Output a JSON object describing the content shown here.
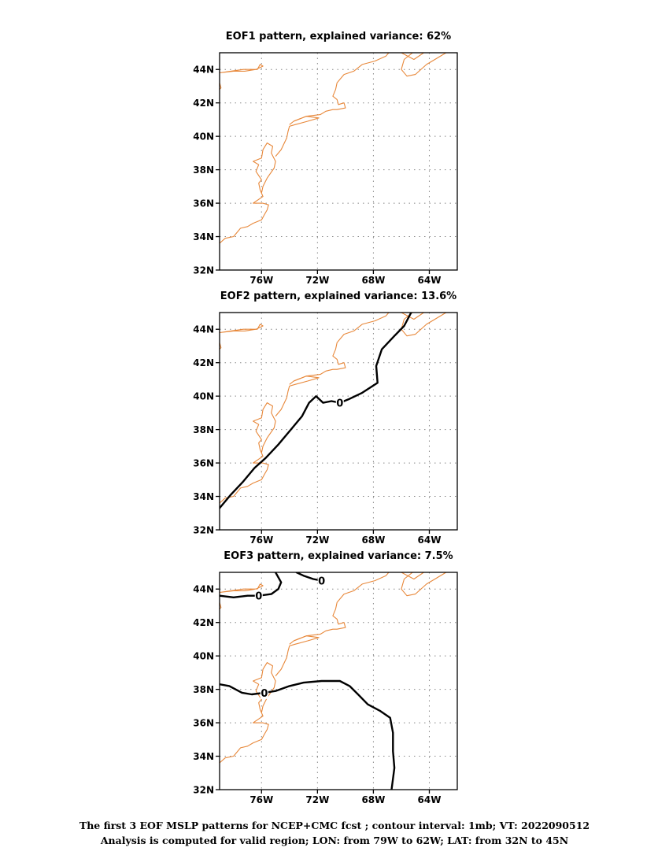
{
  "map": {
    "lon_range": [
      -79,
      -62
    ],
    "lat_range": [
      32,
      45
    ],
    "lon_ticks": [
      -76,
      -72,
      -68,
      -64
    ],
    "lat_ticks": [
      32,
      34,
      36,
      38,
      40,
      42,
      44
    ],
    "lon_tick_labels": [
      "76W",
      "72W",
      "68W",
      "64W"
    ],
    "lat_tick_labels": [
      "32N",
      "34N",
      "36N",
      "38N",
      "40N",
      "42N",
      "44N"
    ],
    "coast_color": "#e8883a",
    "contour_color": "#000000"
  },
  "panels": [
    {
      "title": "EOF1 pattern, explained variance: 62%",
      "contours": []
    },
    {
      "title": "EOF2 pattern, explained variance: 13.6%",
      "contours": [
        {
          "value": "0",
          "label_at": [
            -70.4,
            39.6
          ],
          "points": [
            [
              -79.0,
              33.3
            ],
            [
              -78.2,
              34.1
            ],
            [
              -77.3,
              34.9
            ],
            [
              -76.5,
              35.7
            ],
            [
              -75.7,
              36.3
            ],
            [
              -74.8,
              37.1
            ],
            [
              -73.9,
              38.0
            ],
            [
              -73.1,
              38.8
            ],
            [
              -72.6,
              39.6
            ],
            [
              -72.1,
              40.0
            ],
            [
              -71.6,
              39.6
            ],
            [
              -71.0,
              39.7
            ],
            [
              -70.4,
              39.6
            ],
            [
              -69.8,
              39.8
            ],
            [
              -68.8,
              40.2
            ],
            [
              -67.7,
              40.8
            ],
            [
              -67.8,
              41.8
            ],
            [
              -67.4,
              42.8
            ],
            [
              -66.5,
              43.6
            ],
            [
              -65.8,
              44.2
            ],
            [
              -65.3,
              45.0
            ]
          ]
        }
      ]
    },
    {
      "title": "EOF3 pattern, explained variance: 7.5%",
      "contours": [
        {
          "value": "0",
          "label_at": [
            -76.2,
            43.6
          ],
          "points": [
            [
              -79.0,
              43.6
            ],
            [
              -78.0,
              43.5
            ],
            [
              -77.0,
              43.6
            ],
            [
              -76.2,
              43.6
            ],
            [
              -75.3,
              43.7
            ],
            [
              -74.8,
              44.0
            ],
            [
              -74.6,
              44.4
            ],
            [
              -75.0,
              45.0
            ]
          ]
        },
        {
          "value": "0",
          "label_at": [
            -71.7,
            44.5
          ],
          "points": [
            [
              -73.5,
              45.0
            ],
            [
              -73.0,
              44.8
            ],
            [
              -72.3,
              44.6
            ],
            [
              -71.7,
              44.5
            ]
          ]
        },
        {
          "value": "0",
          "label_at": [
            -75.8,
            37.8
          ],
          "points": [
            [
              -79.0,
              38.3
            ],
            [
              -78.3,
              38.2
            ],
            [
              -77.4,
              37.8
            ],
            [
              -76.7,
              37.7
            ],
            [
              -75.8,
              37.8
            ],
            [
              -75.0,
              37.9
            ],
            [
              -74.0,
              38.2
            ],
            [
              -73.0,
              38.4
            ],
            [
              -71.7,
              38.5
            ],
            [
              -70.4,
              38.5
            ],
            [
              -69.7,
              38.2
            ],
            [
              -69.1,
              37.7
            ],
            [
              -68.4,
              37.1
            ],
            [
              -67.5,
              36.7
            ],
            [
              -66.8,
              36.3
            ],
            [
              -66.6,
              35.4
            ],
            [
              -66.6,
              34.3
            ],
            [
              -66.5,
              33.3
            ],
            [
              -66.7,
              32.0
            ]
          ]
        }
      ]
    }
  ],
  "coastlines": [
    [
      [
        -79.0,
        33.6
      ],
      [
        -78.6,
        33.9
      ],
      [
        -78.0,
        34.0
      ],
      [
        -77.5,
        34.5
      ],
      [
        -77.0,
        34.6
      ],
      [
        -76.6,
        34.8
      ],
      [
        -76.0,
        35.0
      ],
      [
        -75.8,
        35.3
      ],
      [
        -75.6,
        35.6
      ],
      [
        -75.5,
        35.9
      ],
      [
        -75.9,
        36.0
      ],
      [
        -76.6,
        36.0
      ],
      [
        -75.9,
        36.4
      ],
      [
        -76.1,
        36.8
      ],
      [
        -76.2,
        37.2
      ],
      [
        -76.0,
        37.4
      ],
      [
        -76.4,
        37.9
      ],
      [
        -76.2,
        38.3
      ],
      [
        -76.6,
        38.5
      ],
      [
        -76.0,
        38.7
      ],
      [
        -75.9,
        39.2
      ],
      [
        -75.6,
        39.6
      ],
      [
        -75.2,
        39.4
      ],
      [
        -75.3,
        39.0
      ],
      [
        -75.0,
        38.5
      ],
      [
        -75.1,
        38.1
      ],
      [
        -75.6,
        37.5
      ],
      [
        -75.9,
        37.0
      ],
      [
        -76.0,
        36.6
      ]
    ],
    [
      [
        -75.0,
        38.8
      ],
      [
        -74.6,
        39.2
      ],
      [
        -74.2,
        39.9
      ],
      [
        -74.1,
        40.3
      ],
      [
        -74.0,
        40.6
      ],
      [
        -73.6,
        40.7
      ],
      [
        -72.7,
        40.9
      ],
      [
        -71.9,
        41.1
      ],
      [
        -72.8,
        41.2
      ],
      [
        -73.7,
        40.9
      ],
      [
        -74.0,
        40.7
      ]
    ],
    [
      [
        -73.7,
        40.9
      ],
      [
        -72.8,
        41.2
      ],
      [
        -71.8,
        41.3
      ],
      [
        -71.4,
        41.5
      ],
      [
        -70.9,
        41.6
      ],
      [
        -70.6,
        41.6
      ],
      [
        -70.0,
        41.7
      ],
      [
        -70.1,
        42.0
      ],
      [
        -70.5,
        41.9
      ],
      [
        -70.6,
        42.2
      ],
      [
        -70.9,
        42.4
      ],
      [
        -70.7,
        42.8
      ],
      [
        -70.6,
        43.2
      ],
      [
        -70.1,
        43.7
      ],
      [
        -69.4,
        43.9
      ],
      [
        -68.8,
        44.3
      ],
      [
        -67.9,
        44.5
      ],
      [
        -67.1,
        44.8
      ],
      [
        -66.9,
        45.0
      ]
    ],
    [
      [
        -79.0,
        43.8
      ],
      [
        -78.2,
        43.9
      ],
      [
        -77.3,
        44.0
      ],
      [
        -76.3,
        44.0
      ],
      [
        -76.1,
        44.3
      ],
      [
        -75.9,
        44.2
      ],
      [
        -76.4,
        44.0
      ],
      [
        -77.2,
        43.9
      ],
      [
        -78.0,
        43.9
      ],
      [
        -79.0,
        43.8
      ]
    ],
    [
      [
        -79.0,
        42.8
      ],
      [
        -78.9,
        42.9
      ],
      [
        -79.0,
        43.2
      ]
    ],
    [
      [
        -66.0,
        45.0
      ],
      [
        -65.1,
        44.6
      ],
      [
        -64.4,
        45.0
      ]
    ],
    [
      [
        -65.2,
        45.0
      ],
      [
        -65.8,
        44.6
      ],
      [
        -66.0,
        44.0
      ],
      [
        -65.6,
        43.6
      ],
      [
        -65.0,
        43.7
      ],
      [
        -64.2,
        44.3
      ],
      [
        -63.6,
        44.6
      ],
      [
        -63.0,
        44.9
      ],
      [
        -62.8,
        45.0
      ]
    ]
  ],
  "caption": {
    "line1": "The first 3 EOF MSLP patterns for NCEP+CMC fcst ; contour interval: 1mb; VT: 2022090512",
    "line2": "Analysis is computed for valid region; LON: from 79W to 62W; LAT: from 32N to 45N"
  }
}
